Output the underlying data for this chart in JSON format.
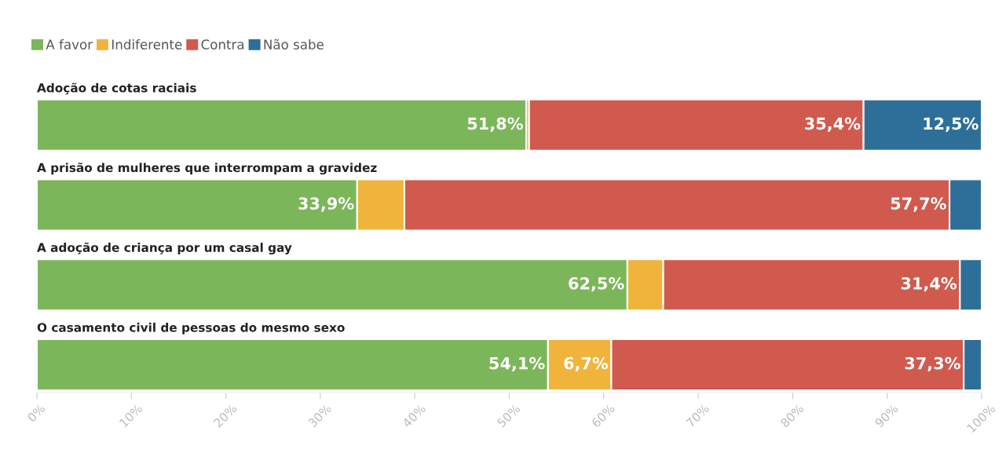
{
  "chart_data": {
    "type": "bar",
    "orientation": "horizontal",
    "stacked": true,
    "categories": [
      "Adoção de cotas raciais",
      "A prisão de mulheres que interrompam a gravidez",
      "A adoção de criança por um casal gay",
      "O casamento civil de pessoas do mesmo sexo"
    ],
    "series": [
      {
        "name": "A favor",
        "color": "#7cb65a",
        "values": [
          51.8,
          33.9,
          62.5,
          54.1
        ],
        "value_labels": [
          "51,8%",
          "33,9%",
          "62,5%",
          "54,1%"
        ]
      },
      {
        "name": "Indiferente",
        "color": "#f0b43c",
        "values": [
          0.3,
          5.0,
          3.8,
          6.7
        ],
        "value_labels": [
          null,
          null,
          null,
          "6,7%"
        ]
      },
      {
        "name": "Contra",
        "color": "#d05a4e",
        "values": [
          35.4,
          57.7,
          31.4,
          37.3
        ],
        "value_labels": [
          "35,4%",
          "57,7%",
          "31,4%",
          "37,3%"
        ]
      },
      {
        "name": "Não sabe",
        "color": "#2e6f99",
        "values": [
          12.5,
          3.4,
          2.3,
          1.9
        ],
        "value_labels": [
          "12,5%",
          null,
          null,
          null
        ]
      }
    ],
    "xlim": [
      0,
      100
    ],
    "xticks": [
      {
        "value": 0,
        "label": "0%"
      },
      {
        "value": 10,
        "label": "10%"
      },
      {
        "value": 20,
        "label": "20%"
      },
      {
        "value": 30,
        "label": "30%"
      },
      {
        "value": 40,
        "label": "40%"
      },
      {
        "value": 50,
        "label": "50%"
      },
      {
        "value": 60,
        "label": "60%"
      },
      {
        "value": 70,
        "label": "70%"
      },
      {
        "value": 80,
        "label": "80%"
      },
      {
        "value": 90,
        "label": "90%"
      },
      {
        "value": 100,
        "label": "100%"
      }
    ],
    "tick_labels": "x",
    "grid": false,
    "legend": "top left"
  }
}
